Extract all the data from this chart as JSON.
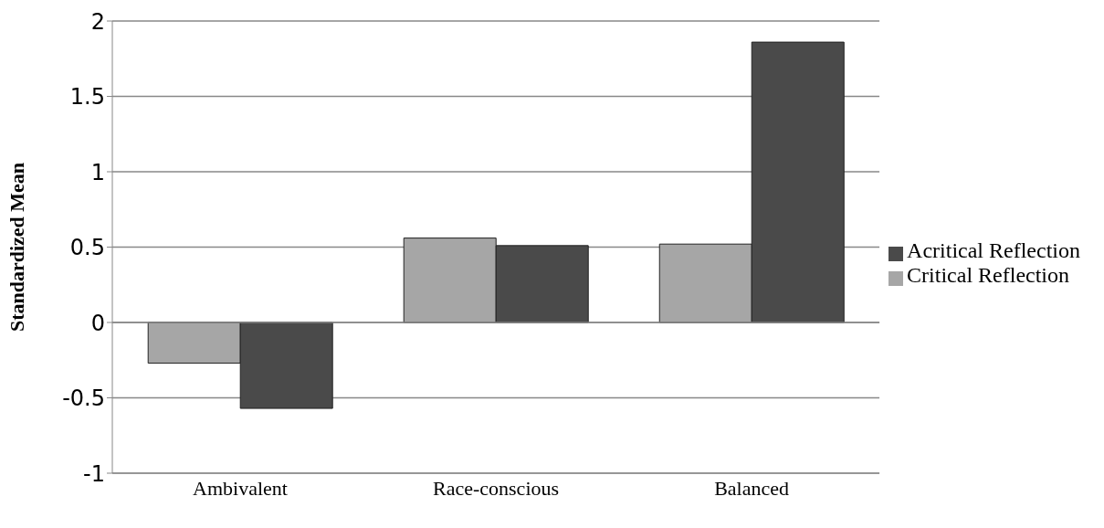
{
  "chart_data": {
    "type": "bar",
    "ylabel": "Standardized Mean",
    "categories": [
      "Ambivalent",
      "Race-conscious",
      "Balanced"
    ],
    "series": [
      {
        "name": "Critical Reflection",
        "color": "#a6a6a6",
        "values": [
          -0.27,
          0.56,
          0.52
        ]
      },
      {
        "name": "Acritical Reflection",
        "color": "#4a4a4a",
        "values": [
          -0.57,
          0.51,
          1.86
        ]
      }
    ],
    "ylim": [
      -1,
      2
    ],
    "yticks": [
      -1,
      -0.5,
      0,
      0.5,
      1,
      1.5,
      2
    ],
    "grid": "y",
    "legend": "right"
  }
}
